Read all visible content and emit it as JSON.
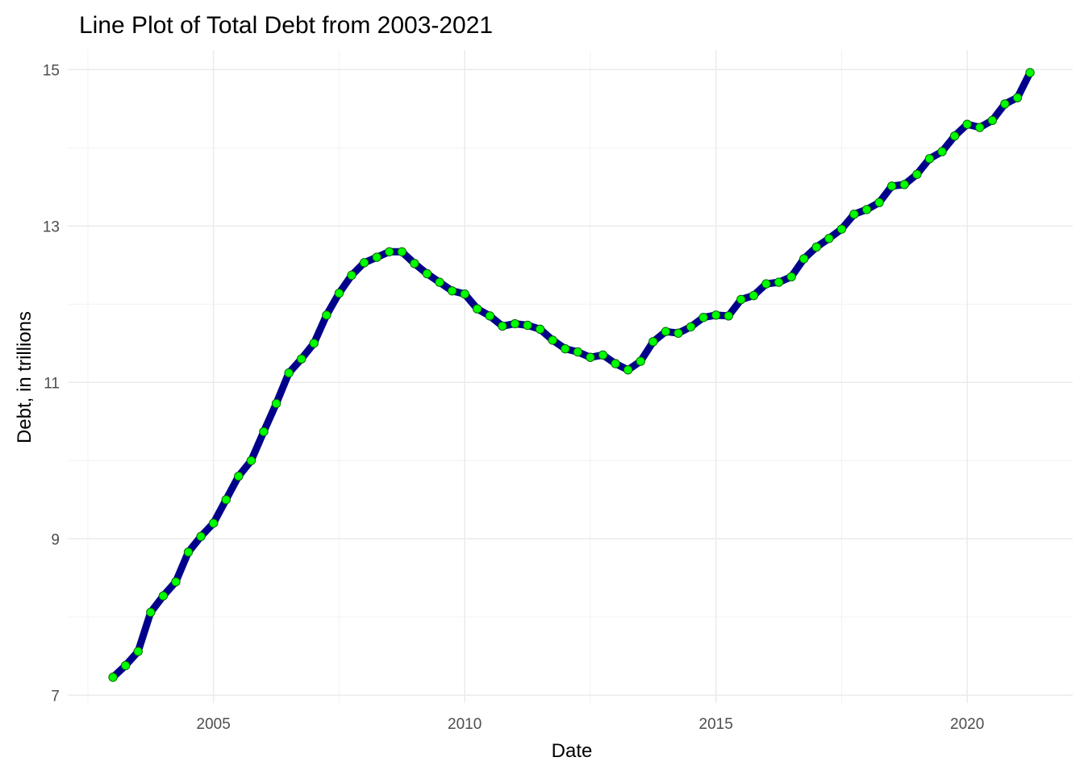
{
  "chart_data": {
    "type": "line",
    "title": "Line Plot of Total Debt from 2003-2021",
    "xlabel": "Date",
    "ylabel": "Debt, in trillions",
    "xlim": [
      2002.1,
      2022.1
    ],
    "ylim": [
      6.9,
      15.25
    ],
    "x_ticks": [
      2005,
      2010,
      2015,
      2020
    ],
    "x_tick_labels": [
      "2005",
      "2010",
      "2015",
      "2020"
    ],
    "y_ticks": [
      7,
      9,
      11,
      13,
      15
    ],
    "y_tick_labels": [
      "7",
      "9",
      "11",
      "13",
      "15"
    ],
    "grid": true,
    "colors": {
      "line": "#00008b",
      "point_fill": "#00ff00",
      "point_stroke": "#006400"
    },
    "series": [
      {
        "x": [
          2003.0,
          2003.25,
          2003.5,
          2003.75,
          2004.0,
          2004.25,
          2004.5,
          2004.75,
          2005.0,
          2005.25,
          2005.5,
          2005.75,
          2006.0,
          2006.25,
          2006.5,
          2006.75,
          2007.0,
          2007.25,
          2007.5,
          2007.75,
          2008.0,
          2008.25,
          2008.5,
          2008.75,
          2009.0,
          2009.25,
          2009.5,
          2009.75,
          2010.0,
          2010.25,
          2010.5,
          2010.75,
          2011.0,
          2011.25,
          2011.5,
          2011.75,
          2012.0,
          2012.25,
          2012.5,
          2012.75,
          2013.0,
          2013.25,
          2013.5,
          2013.75,
          2014.0,
          2014.25,
          2014.5,
          2014.75,
          2015.0,
          2015.25,
          2015.5,
          2015.75,
          2016.0,
          2016.25,
          2016.5,
          2016.75,
          2017.0,
          2017.25,
          2017.5,
          2017.75,
          2018.0,
          2018.25,
          2018.5,
          2018.75,
          2019.0,
          2019.25,
          2019.5,
          2019.75,
          2020.0,
          2020.25,
          2020.5,
          2020.75,
          2021.0,
          2021.25
        ],
        "y": [
          7.23,
          7.38,
          7.56,
          8.06,
          8.27,
          8.45,
          8.83,
          9.03,
          9.2,
          9.5,
          9.8,
          10.0,
          10.37,
          10.73,
          11.12,
          11.3,
          11.5,
          11.86,
          12.14,
          12.37,
          12.53,
          12.6,
          12.67,
          12.67,
          12.52,
          12.39,
          12.28,
          12.17,
          12.13,
          11.94,
          11.85,
          11.72,
          11.75,
          11.73,
          11.68,
          11.54,
          11.43,
          11.39,
          11.32,
          11.35,
          11.24,
          11.16,
          11.27,
          11.52,
          11.65,
          11.63,
          11.71,
          11.83,
          11.86,
          11.85,
          12.06,
          12.11,
          12.26,
          12.28,
          12.35,
          12.58,
          12.73,
          12.84,
          12.96,
          13.15,
          13.21,
          13.3,
          13.51,
          13.53,
          13.66,
          13.86,
          13.95,
          14.15,
          14.3,
          14.26,
          14.35,
          14.56,
          14.64,
          14.96
        ]
      }
    ]
  }
}
